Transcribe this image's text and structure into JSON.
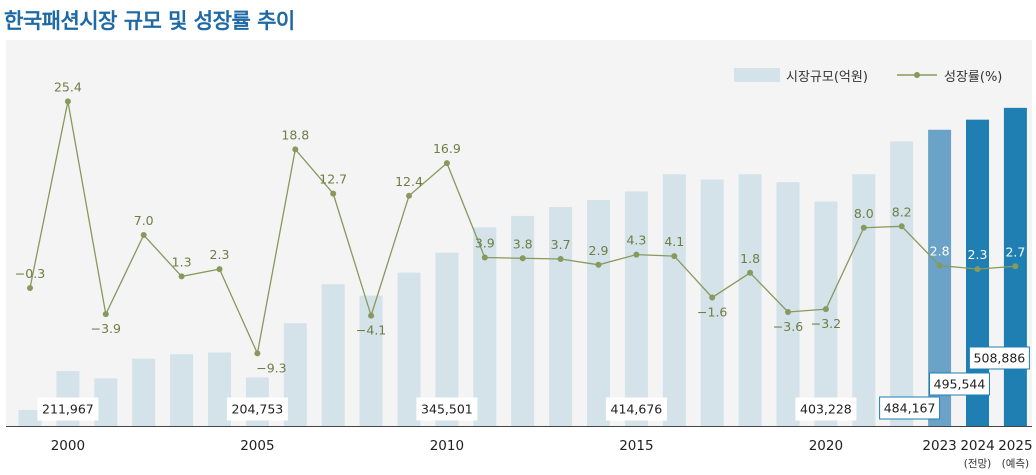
{
  "title": "한국패션시장 규모 및 성장률 추이",
  "legend": {
    "bar_label": "시장규모(억원)",
    "line_label": "성장률(%)"
  },
  "colors": {
    "bar": "#d4e2ea",
    "bar_2023": "#6ba3c8",
    "bar_forecast": "#1f7fb2",
    "line": "#87995c",
    "growth_label": "#6f7d45",
    "title": "#1f6aa5"
  },
  "chart_data": {
    "type": "bar",
    "title": "한국패션시장 규모 및 성장률 추이",
    "categories": [
      "1999",
      "2000",
      "2001",
      "2002",
      "2003",
      "2004",
      "2005",
      "2006",
      "2007",
      "2008",
      "2009",
      "2010",
      "2011",
      "2012",
      "2013",
      "2014",
      "2015",
      "2016",
      "2017",
      "2018",
      "2019",
      "2020",
      "2021",
      "2022",
      "2023",
      "2024",
      "2025"
    ],
    "x_tick_labels": [
      "",
      "2000",
      "",
      "",
      "",
      "",
      "2005",
      "",
      "",
      "",
      "",
      "2010",
      "",
      "",
      "",
      "",
      "2015",
      "",
      "",
      "",
      "",
      "2020",
      "",
      "",
      "2023",
      "2024",
      "2025"
    ],
    "x_sub_labels": [
      "",
      "",
      "",
      "",
      "",
      "",
      "",
      "",
      "",
      "",
      "",
      "",
      "",
      "",
      "",
      "",
      "",
      "",
      "",
      "",
      "",
      "",
      "",
      "",
      "",
      "(전망)",
      "(예측)"
    ],
    "series": [
      {
        "name": "시장규모(억원)",
        "type": "bar",
        "values": [
          168000,
          211967,
          203800,
          226000,
          231000,
          233000,
          204753,
          266000,
          310000,
          297000,
          323000,
          345501,
          374000,
          387000,
          397000,
          405000,
          414676,
          434000,
          428000,
          434000,
          425000,
          403228,
          434000,
          471000,
          484167,
          495544,
          508886
        ]
      },
      {
        "name": "성장률(%)",
        "type": "line",
        "values": [
          -0.3,
          25.4,
          -3.9,
          7.0,
          1.3,
          2.3,
          -9.3,
          18.8,
          12.7,
          -4.1,
          12.4,
          16.9,
          3.9,
          3.8,
          3.7,
          2.9,
          4.3,
          4.1,
          -1.6,
          1.8,
          -3.6,
          -3.2,
          8.0,
          8.2,
          2.8,
          2.3,
          2.7
        ],
        "labels": [
          "−0.3",
          "25.4",
          "−3.9",
          "7.0",
          "1.3",
          "2.3",
          "−9.3",
          "18.8",
          "12.7",
          "−4.1",
          "12.4",
          "16.9",
          "3.9",
          "3.8",
          "3.7",
          "2.9",
          "4.3",
          "4.1",
          "−1.6",
          "1.8",
          "−3.6",
          "−3.2",
          "8.0",
          "8.2",
          "2.8",
          "2.3",
          "2.7"
        ]
      }
    ],
    "bar_value_labels": [
      {
        "index": 1,
        "text": "211,967"
      },
      {
        "index": 6,
        "text": "204,753"
      },
      {
        "index": 11,
        "text": "345,501"
      },
      {
        "index": 16,
        "text": "414,676"
      },
      {
        "index": 21,
        "text": "403,228"
      },
      {
        "index": 24,
        "text": "484,167"
      },
      {
        "index": 25,
        "text": "495,544"
      },
      {
        "index": 26,
        "text": "508,886"
      }
    ],
    "bar_ylim": [
      150000,
      520000
    ],
    "line_ylim": [
      -12,
      30
    ],
    "grid": false,
    "legend_position": "top-right"
  }
}
